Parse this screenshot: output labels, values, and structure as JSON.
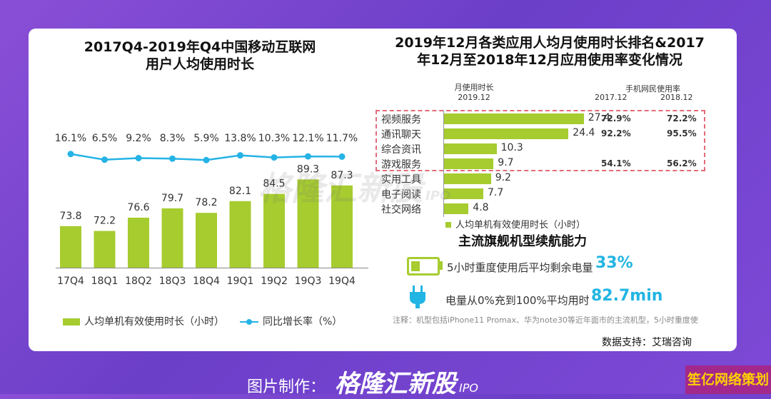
{
  "left_chart": {
    "title_line1": "2017Q4-2019年Q4中国移动互联网",
    "title_line2": "用户人均使用时长",
    "legend_bar": "人均单机有效使用时长（小时）",
    "legend_line": "同比增长率（%）"
  },
  "right_panel": {
    "title_line1": "2019年12月各类应用人均月使用时长排名&2017",
    "title_line2": "年12月至2018年12月应用使用率变化情况",
    "col_header_left_1": "月使用时长",
    "col_header_left_2": "2019.12",
    "col_header_right": "手机网民使用率",
    "col_2017": "2017.12",
    "col_2018": "2018.12",
    "legend": "人均单机有效使用时长（小时）",
    "battery_title": "主流旗舰机型续航能力",
    "battery_label": "5小时重度使用后平均剩余电量",
    "battery_value": "33%",
    "charge_label": "电量从0%充到100%平均用时",
    "charge_value": "82.7min",
    "note": "注释：机型包括iPhone11 Promax、华为note30等近年面市的主流机型，5小时重度使",
    "source": "数据支持：艾瑞咨询"
  },
  "watermark": "格隆汇新股",
  "watermark_sub": "IPO",
  "footer_title": "图片制作：",
  "corner_badge": "笙亿网络策划",
  "chart_data": [
    {
      "type": "bar",
      "title": "2017Q4-2019年Q4中国移动互联网用户人均使用时长",
      "categories": [
        "17Q4",
        "18Q1",
        "18Q2",
        "18Q3",
        "18Q4",
        "19Q1",
        "19Q2",
        "19Q3",
        "19Q4"
      ],
      "series": [
        {
          "name": "人均单机有效使用时长（小时）",
          "type": "bar",
          "values": [
            73.8,
            72.2,
            76.6,
            79.7,
            78.2,
            82.1,
            84.5,
            89.3,
            87.3
          ],
          "color": "#a6cc2f"
        },
        {
          "name": "同比增长率（%）",
          "type": "line",
          "values": [
            16.1,
            6.5,
            9.2,
            8.3,
            5.9,
            13.8,
            10.3,
            12.1,
            11.7
          ],
          "labels": [
            "16.1%",
            "6.5%",
            "9.2%",
            "8.3%",
            "5.9%",
            "13.8%",
            "10.3%",
            "12.1%",
            "11.7%"
          ],
          "color": "#25b3e6"
        }
      ],
      "ylim": [
        60,
        92
      ]
    },
    {
      "type": "bar",
      "orientation": "horizontal",
      "title": "2019年12月各类应用人均月使用时长排名",
      "categories": [
        "视频服务",
        "通讯聊天",
        "综合资讯",
        "游戏服务",
        "实用工具",
        "电子阅读",
        "社交网络"
      ],
      "values": [
        27.4,
        24.4,
        10.3,
        9.7,
        9.2,
        7.7,
        4.8
      ],
      "xlim": [
        0,
        28
      ]
    },
    {
      "type": "table",
      "title": "手机网民使用率",
      "columns": [
        "2017.12",
        "2018.12"
      ],
      "rows": [
        {
          "category": "视频服务",
          "values": [
            "72.9%",
            "72.2%"
          ]
        },
        {
          "category": "通讯聊天",
          "values": [
            "92.2%",
            "95.5%"
          ]
        },
        {
          "category": "游戏服务",
          "values": [
            "54.1%",
            "56.2%"
          ]
        }
      ]
    }
  ]
}
